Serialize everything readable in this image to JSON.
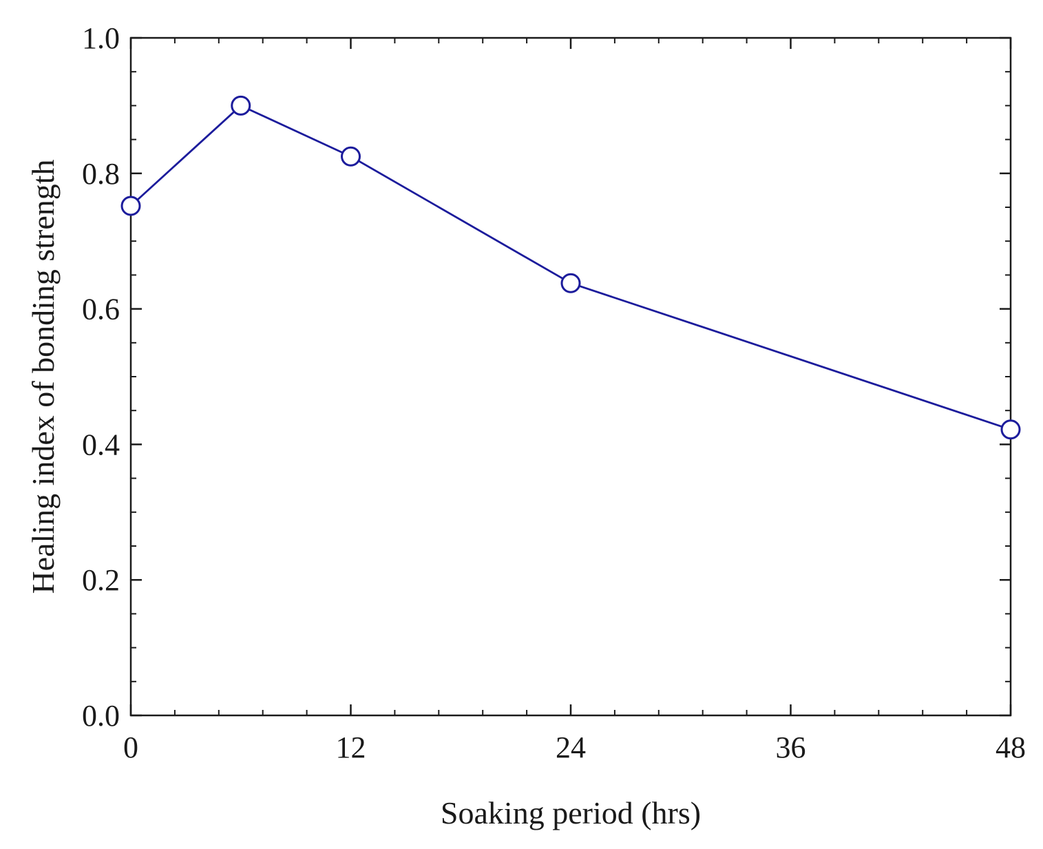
{
  "chart_data": {
    "type": "line",
    "title": "",
    "xlabel": "Soaking period (hrs)",
    "ylabel": "Healing index of bonding strength",
    "xlim": [
      0,
      48
    ],
    "ylim": [
      0.0,
      1.0
    ],
    "x_ticks": [
      0,
      12,
      24,
      36,
      48
    ],
    "x_tick_labels": [
      "0",
      "12",
      "24",
      "36",
      "48"
    ],
    "x_minor_step": 2.4,
    "y_ticks": [
      0.0,
      0.2,
      0.4,
      0.6,
      0.8,
      1.0
    ],
    "y_tick_labels": [
      "0.0",
      "0.2",
      "0.4",
      "0.6",
      "0.8",
      "1.0"
    ],
    "y_minor_step": 0.05,
    "grid": false,
    "legend": "none",
    "series": [
      {
        "name": "Healing index",
        "color": "#1c1c9c",
        "marker": "open-circle",
        "x": [
          0,
          6,
          12,
          24,
          48
        ],
        "y": [
          0.752,
          0.9,
          0.825,
          0.638,
          0.422
        ]
      }
    ]
  }
}
